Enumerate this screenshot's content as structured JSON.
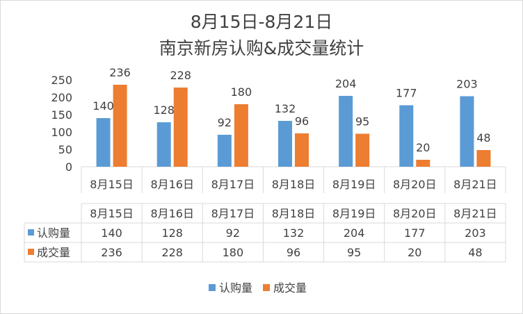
{
  "chart_data": {
    "type": "bar",
    "title_line1": "8月15日-8月21日",
    "title_line2": "南京新房认购&成交量统计",
    "categories": [
      "8月15日",
      "8月16日",
      "8月17日",
      "8月18日",
      "8月19日",
      "8月20日",
      "8月21日"
    ],
    "series": [
      {
        "name": "认购量",
        "color": "#5b9bd5",
        "values": [
          140,
          128,
          92,
          132,
          204,
          177,
          203
        ]
      },
      {
        "name": "成交量",
        "color": "#ed7d31",
        "values": [
          236,
          228,
          180,
          96,
          95,
          20,
          48
        ]
      }
    ],
    "ylim": [
      0,
      250
    ],
    "yticks": [
      "0",
      "50",
      "100",
      "150",
      "200",
      "250"
    ],
    "grid": false,
    "data_table": true,
    "legend_position": "bottom"
  }
}
